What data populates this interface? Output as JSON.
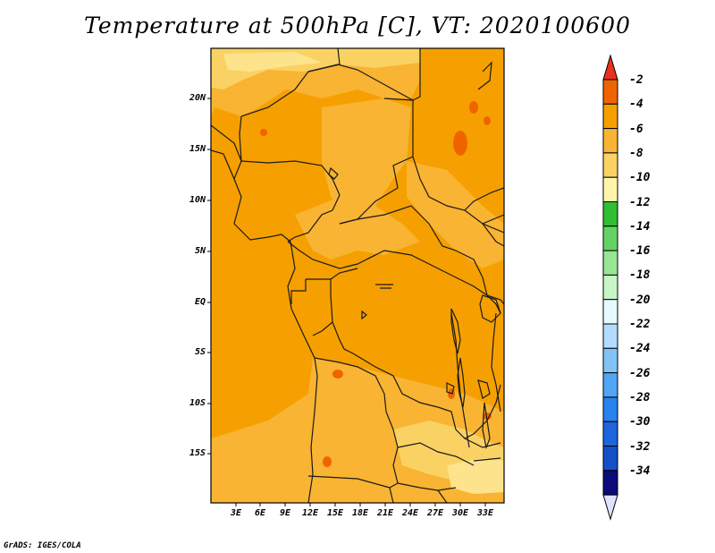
{
  "title": "Temperature at 500hPa [C], VT: 2020100600",
  "credit": "GrADS: IGES/COLA",
  "lat_labels": [
    "20N",
    "15N",
    "10N",
    "5N",
    "EQ",
    "5S",
    "10S",
    "15S"
  ],
  "lon_labels": [
    "3E",
    "6E",
    "9E",
    "12E",
    "15E",
    "18E",
    "21E",
    "24E",
    "27E",
    "30E",
    "33E"
  ],
  "colorbar": {
    "labels": [
      "-2",
      "-4",
      "-6",
      "-8",
      "-10",
      "-12",
      "-14",
      "-16",
      "-18",
      "-20",
      "-22",
      "-24",
      "-26",
      "-28",
      "-30",
      "-32",
      "-34"
    ],
    "colors_top_to_bottom": [
      "#e6321e",
      "#f06400",
      "#f5a000",
      "#f8b432",
      "#fad264",
      "#fff5aa",
      "#32be32",
      "#64d264",
      "#96e696",
      "#c8f5c8",
      "#e6faff",
      "#b4dcff",
      "#82c3f5",
      "#50a5f5",
      "#2882f0",
      "#1e64dc",
      "#1450c8",
      "#0a0a78",
      "#e1e1ff"
    ]
  },
  "field_colors": {
    "m4": "#f5a000",
    "m6": "#f8b432",
    "m8": "#fad264",
    "m10": "#fde48c",
    "m2": "#f06400",
    "boundary": "#1a1a1a"
  }
}
